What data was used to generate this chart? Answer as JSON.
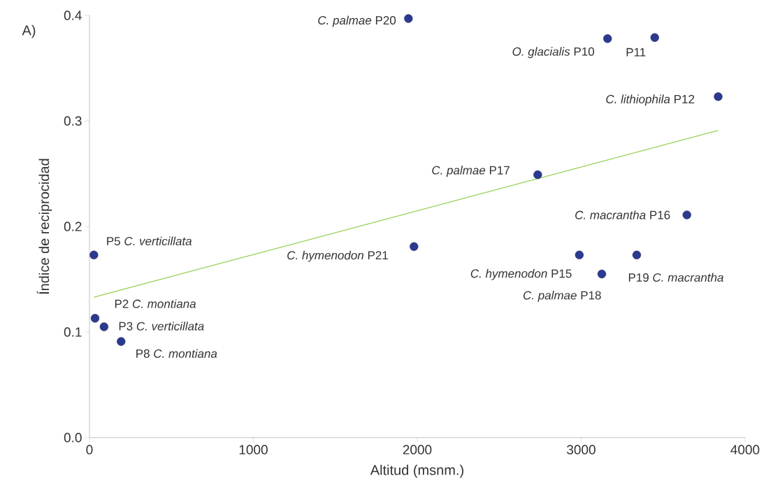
{
  "chart_data": {
    "type": "scatter",
    "xlabel": "Altitud  (msnm.)",
    "ylabel": "Índice de reciprocidad",
    "xlim": [
      0,
      4000
    ],
    "ylim": [
      0,
      0.4
    ],
    "xticks": [
      0,
      1000,
      2000,
      3000,
      4000
    ],
    "yticks": [
      {
        "value": 0,
        "label": "0.0"
      },
      0.1,
      0.2,
      0.3,
      0.4
    ],
    "marker": "circle",
    "series": [
      {
        "color": "#2b3990",
        "x": [
          1946,
          3161,
          3449,
          3836,
          2735,
          3645,
          1980,
          2989,
          3126,
          3339,
          27,
          34,
          89,
          193
        ],
        "values": [
          0.397,
          0.378,
          0.379,
          0.323,
          0.249,
          0.211,
          0.181,
          0.173,
          0.155,
          0.173,
          0.173,
          0.113,
          0.105,
          0.091
        ]
      },
      {
        "type": "line",
        "marker": "none",
        "color": "#92d050",
        "x": [
          27,
          3836
        ],
        "values": [
          0.133,
          0.291
        ]
      }
    ],
    "annotations": [
      "A)",
      {
        "text": "*C. palmae* P20",
        "x": 1946,
        "y": 0.397
      },
      {
        "text": "*O. glacialis*  P10",
        "x": 3161,
        "y": 0.378
      },
      {
        "text": "P11",
        "x": 3449,
        "y": 0.379
      },
      {
        "text": "*C. lithiophila* P12",
        "x": 3836,
        "y": 0.323
      },
      {
        "text": "*C. palmae* P17",
        "x": 2735,
        "y": 0.249
      },
      {
        "text": "*C. macrantha* P16",
        "x": 3645,
        "y": 0.211
      },
      {
        "text": "*C. hymenodon* P21",
        "x": 1980,
        "y": 0.181
      },
      {
        "text": "*C. hymenodon*  P15",
        "x": 2989,
        "y": 0.173
      },
      {
        "text": "*C. palmae* P18",
        "x": 3126,
        "y": 0.155
      },
      {
        "text": "P19 *C. macrantha*",
        "x": 3339,
        "y": 0.173
      },
      {
        "text": "P5 *C. verticillata*",
        "x": 27,
        "y": 0.173
      },
      {
        "text": "P2 *C. montiana*",
        "x": 34,
        "y": 0.113
      },
      {
        "text": "P3 *C. verticillata*",
        "x": 89,
        "y": 0.105
      },
      {
        "text": "P8 *C. montiana*",
        "x": 193,
        "y": 0.091
      }
    ]
  }
}
